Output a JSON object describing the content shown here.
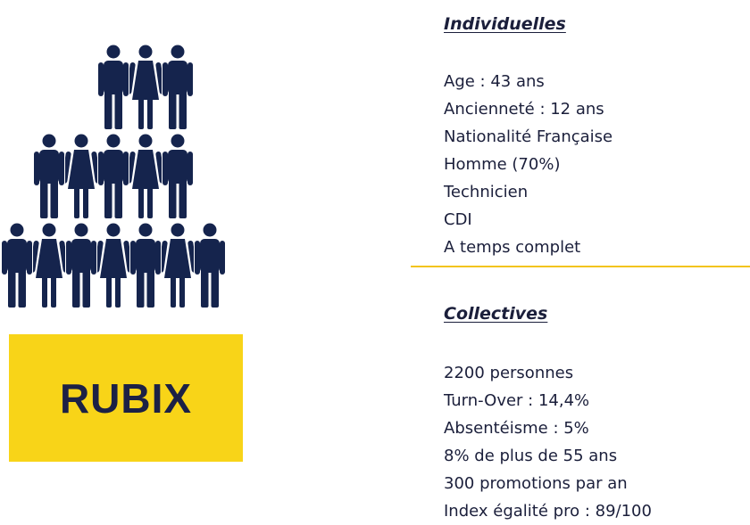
{
  "logo": "RUBIX",
  "individuelles": {
    "heading": "Individuelles",
    "items": [
      "Age : 43 ans",
      "Ancienneté : 12 ans",
      "Nationalité Française",
      "Homme (70%)",
      "Technicien",
      "CDI",
      "A temps complet"
    ]
  },
  "collectives": {
    "heading": "Collectives",
    "items": [
      "2200 personnes",
      "Turn-Over : 14,4%",
      "Absentéisme : 5%",
      "8% de plus de 55 ans",
      "300 promotions par an",
      "Index égalité pro : 89/100"
    ]
  }
}
